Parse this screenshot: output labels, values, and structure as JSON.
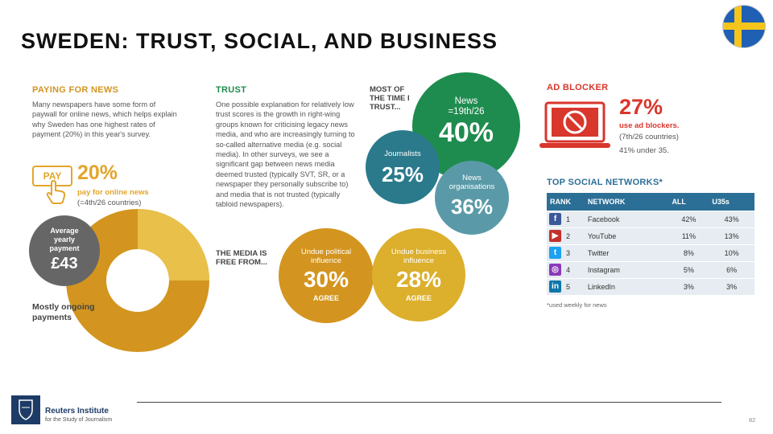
{
  "title": "SWEDEN: TRUST, SOCIAL, AND BUSINESS",
  "flag": {
    "country": "Sweden",
    "colors": {
      "blue": "#1f5fb4",
      "yellow": "#f6c51b"
    }
  },
  "paying": {
    "heading": "PAYING FOR NEWS",
    "body": "Many newspapers have some form of paywall for online news, which helps explain why Sweden has one highest rates of payment (20%) in this year's survey.",
    "badge": "PAY",
    "badge_icon": "hand-pointer-icon",
    "pct": "20%",
    "pct_label": "pay for online news",
    "rank": "(=4th/26 countries)",
    "average_label": "Average yearly payment",
    "average_value": "£43",
    "ongoing_label": "Mostly ongoing payments"
  },
  "trust": {
    "heading": "TRUST",
    "body": "One possible explanation for relatively low trust scores is the growth in right-wing groups known for criticising legacy news media, and who are increasingly turning to so-called alternative media (e.g. social media). In other surveys, we see a significant gap between news media deemed trusted (typically SVT, SR, or a newspaper they personally subscribe to) and media that is not trusted (typically tabloid newspapers)."
  },
  "most_time": {
    "heading": "MOST OF THE TIME I TRUST...",
    "news_label": "News =19th/26",
    "news_pct": "40%",
    "journalists_label": "Journalists",
    "journalists_pct": "25%",
    "orgs_label": "News organisations",
    "orgs_pct": "36%"
  },
  "free_from": {
    "heading": "THE MEDIA IS FREE FROM...",
    "political_label": "Undue political influence",
    "political_pct": "30%",
    "business_label": "Undue business influence",
    "business_pct": "28%",
    "agree": "AGREE"
  },
  "ad_blocker": {
    "heading": "AD BLOCKER",
    "icon": "laptop-blocked-icon",
    "pct": "27%",
    "pct_label": "use ad blockers.",
    "rank": "(7th/26 countries)",
    "under35": "41% under 35."
  },
  "social": {
    "heading": "TOP SOCIAL NETWORKS*",
    "columns": [
      "RANK",
      "NETWORK",
      "ALL",
      "U35s"
    ],
    "rows": [
      {
        "icon": "facebook-icon",
        "glyph": "f",
        "color": "#3b5998",
        "rank": "1",
        "network": "Facebook",
        "all": "42%",
        "u35": "43%"
      },
      {
        "icon": "youtube-icon",
        "glyph": "▶",
        "color": "#c4302b",
        "rank": "2",
        "network": "YouTube",
        "all": "11%",
        "u35": "13%"
      },
      {
        "icon": "twitter-icon",
        "glyph": "t",
        "color": "#1da1f2",
        "rank": "3",
        "network": "Twitter",
        "all": "8%",
        "u35": "10%"
      },
      {
        "icon": "instagram-icon",
        "glyph": "◎",
        "color": "#8a3ab9",
        "rank": "4",
        "network": "Instagram",
        "all": "5%",
        "u35": "6%"
      },
      {
        "icon": "linkedin-icon",
        "glyph": "in",
        "color": "#0e76a8",
        "rank": "5",
        "network": "LinkedIn",
        "all": "3%",
        "u35": "3%"
      }
    ],
    "note": "*used weekly for news"
  },
  "footer": {
    "logo": "oxford-crest-icon",
    "org": "Reuters Institute",
    "org_sub": "for the Study of Journalism",
    "page": "82"
  },
  "colors": {
    "gold": "#d3951f",
    "gold_light": "#e8c04a",
    "red": "#d9362c",
    "green": "#1e8c4e",
    "teal": "#2a7a8c",
    "table_header": "#2c6f96"
  }
}
